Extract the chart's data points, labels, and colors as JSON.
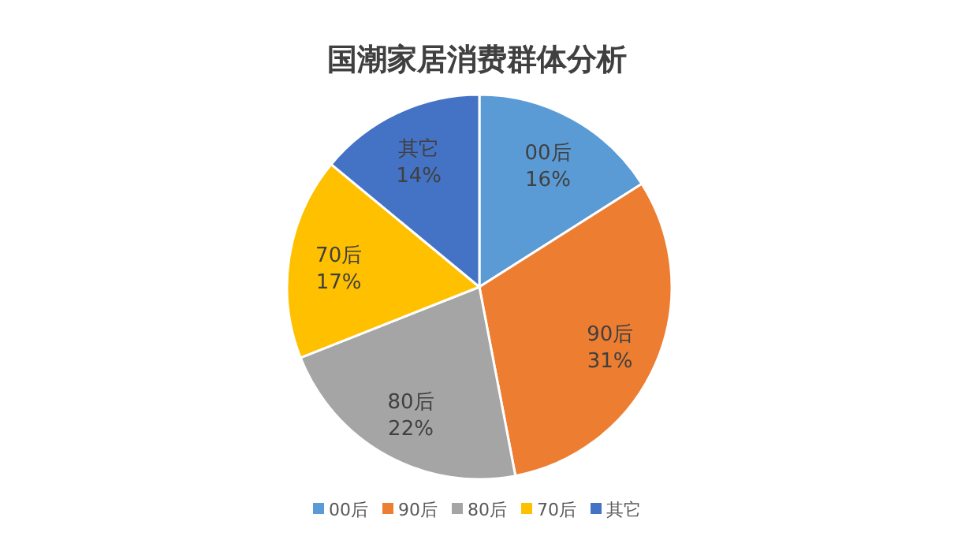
{
  "chart_data": {
    "type": "pie",
    "title": "国潮家居消费群体分析",
    "categories": [
      "00后",
      "90后",
      "80后",
      "70后",
      "其它"
    ],
    "values": [
      16,
      31,
      22,
      17,
      14
    ],
    "value_labels": [
      "16%",
      "31%",
      "22%",
      "17%",
      "14%"
    ],
    "colors": [
      "#5b9bd5",
      "#ed7d31",
      "#a5a5a5",
      "#ffc000",
      "#4472c4"
    ],
    "legend": "bottom"
  }
}
